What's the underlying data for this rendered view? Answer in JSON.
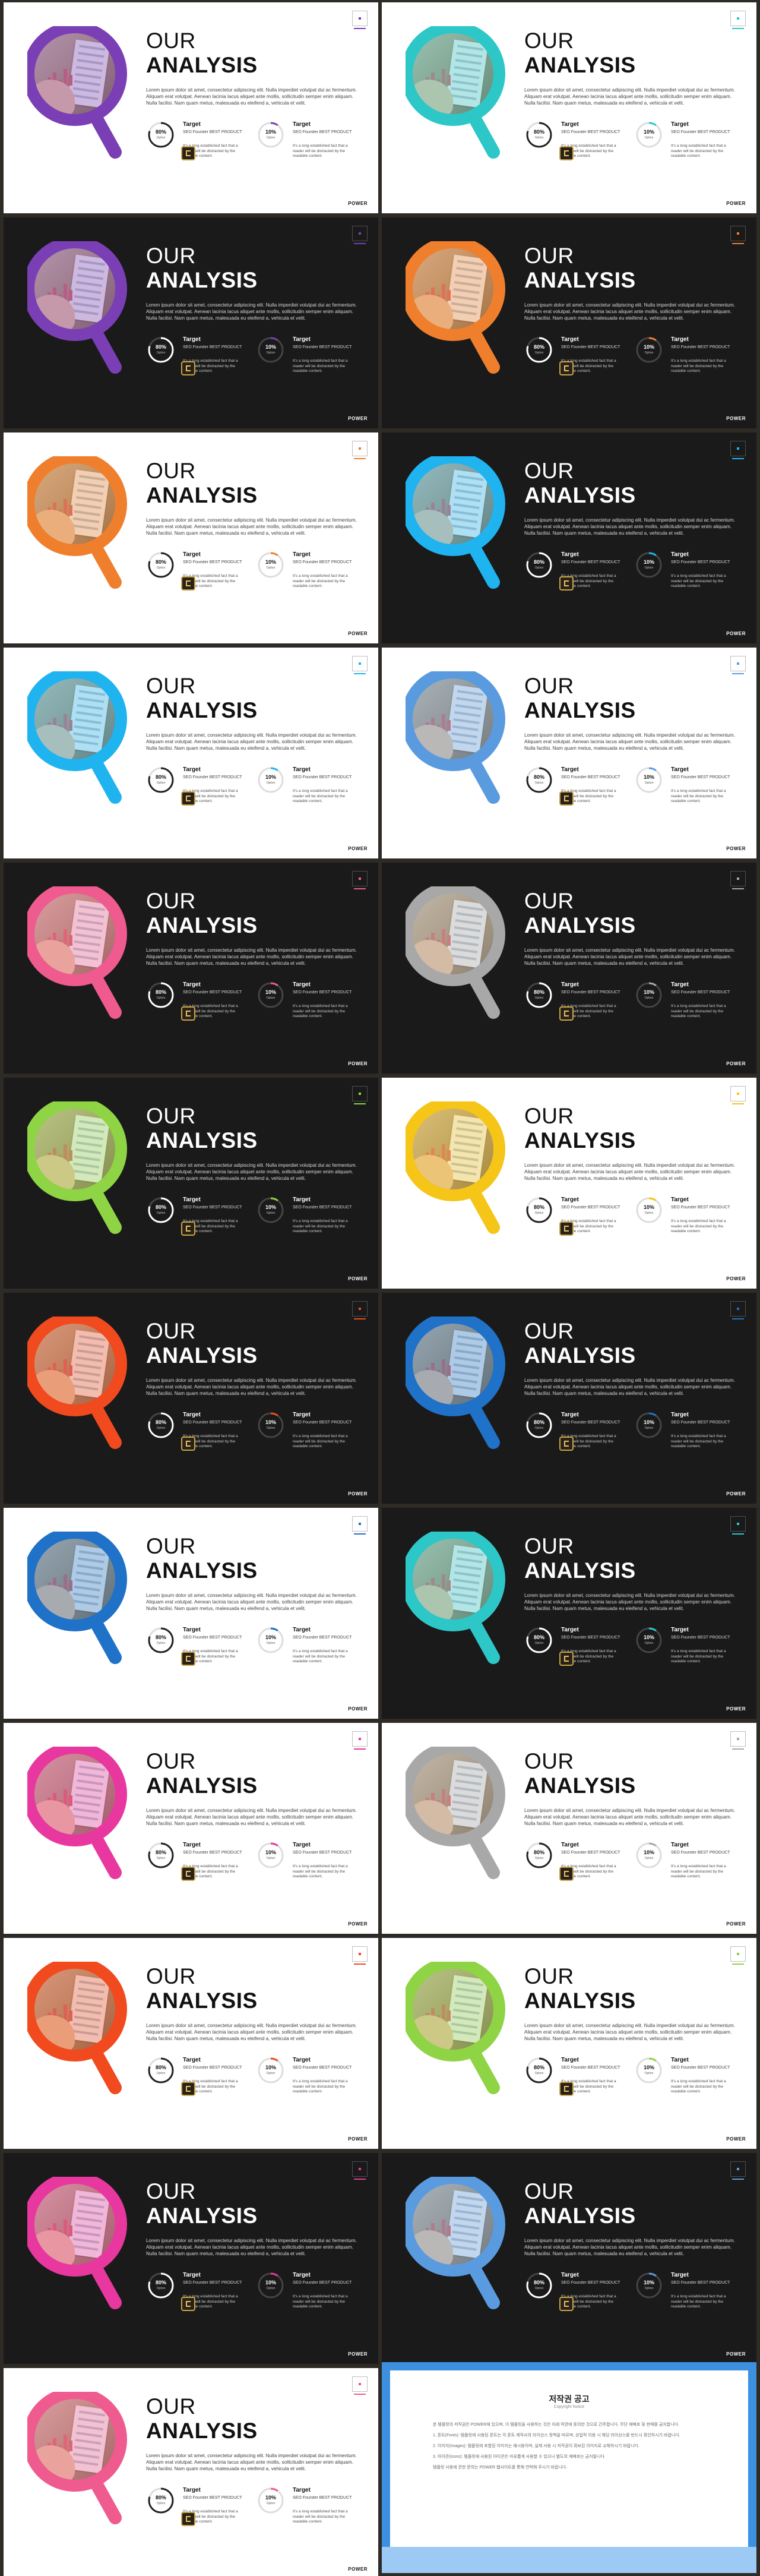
{
  "content": {
    "title_line1": "OUR",
    "title_line2": "ANALYSIS",
    "body": "Lorem ipsum dolor sit amet, consectetur adipiscing elit. Nulla imperdiet volutpat dui ac fermentum. Aliquam erat volutpat. Aenean lacinia lacus aliquet ante mollis, sollicitudin semper enim aliquam. Nulla facilisi. Nam quam metus, malesuada eu eleifend a, vehicula et velit.",
    "stat1": {
      "percent": "80%",
      "sub": "Option",
      "label": "Target",
      "label_sub": "SEO Founder BEST PRODUCT",
      "desc": "It's a long established fact that a reader will be distracted by the readable content."
    },
    "stat2": {
      "percent": "10%",
      "sub": "Option",
      "label": "Target",
      "label_sub": "SEO Founder BEST PRODUCT",
      "desc": "It's a long established fact that a reader will be distracted by the readable content."
    },
    "brand": "POWER"
  },
  "slides": [
    {
      "theme": "light",
      "accent": "#7b3fb5"
    },
    {
      "theme": "light",
      "accent": "#2dc7c8"
    },
    {
      "theme": "dark",
      "accent": "#7b3fb5"
    },
    {
      "theme": "dark",
      "accent": "#f07f2d"
    },
    {
      "theme": "light",
      "accent": "#f07f2d"
    },
    {
      "theme": "dark",
      "accent": "#1fb4f0"
    },
    {
      "theme": "light",
      "accent": "#1fb4f0"
    },
    {
      "theme": "light",
      "accent": "#5a9be0"
    },
    {
      "theme": "dark",
      "accent": "#ef5a8f"
    },
    {
      "theme": "dark",
      "accent": "#a8a8a8"
    },
    {
      "theme": "dark",
      "accent": "#8ed444"
    },
    {
      "theme": "light",
      "accent": "#f5c518"
    },
    {
      "theme": "dark",
      "accent": "#f04a1e"
    },
    {
      "theme": "dark",
      "accent": "#1f72c8"
    },
    {
      "theme": "light",
      "accent": "#1f72c8"
    },
    {
      "theme": "dark",
      "accent": "#2dc7c8"
    },
    {
      "theme": "light",
      "accent": "#e8389f"
    },
    {
      "theme": "light",
      "accent": "#a8a8a8"
    },
    {
      "theme": "light",
      "accent": "#f04a1e"
    },
    {
      "theme": "light",
      "accent": "#8ed444"
    },
    {
      "theme": "dark",
      "accent": "#e8389f"
    },
    {
      "theme": "dark",
      "accent": "#5a9be0"
    },
    {
      "theme": "light",
      "accent": "#ef5a8f"
    }
  ],
  "copyright": {
    "title": "저작권 공고",
    "subtitle": "Copyright Notice",
    "paragraphs": [
      "본 템플릿의 저작권은 POWER에 있으며, 이 템플릿을 사용하는 것은 아래 약관에 동의한 것으로 간주합니다. 무단 재배포 및 판매를 금지합니다.",
      "1. 폰트(Fonts): 템플릿에 사용된 폰트는 각 폰트 제작사의 라이선스 정책을 따르며, 상업적 이용 시 해당 라이선스를 반드시 확인하시기 바랍니다.",
      "2. 이미지(Images): 템플릿에 포함된 이미지는 예시용이며, 실제 사용 시 저작권이 확보된 이미지로 교체하시기 바랍니다.",
      "3. 아이콘(Icons): 템플릿에 사용된 아이콘은 자유롭게 사용할 수 있으나 별도의 재배포는 금지됩니다.",
      "템플릿 사용에 관한 문의는 POWER 웹사이트를 통해 연락해 주시기 바랍니다."
    ]
  }
}
